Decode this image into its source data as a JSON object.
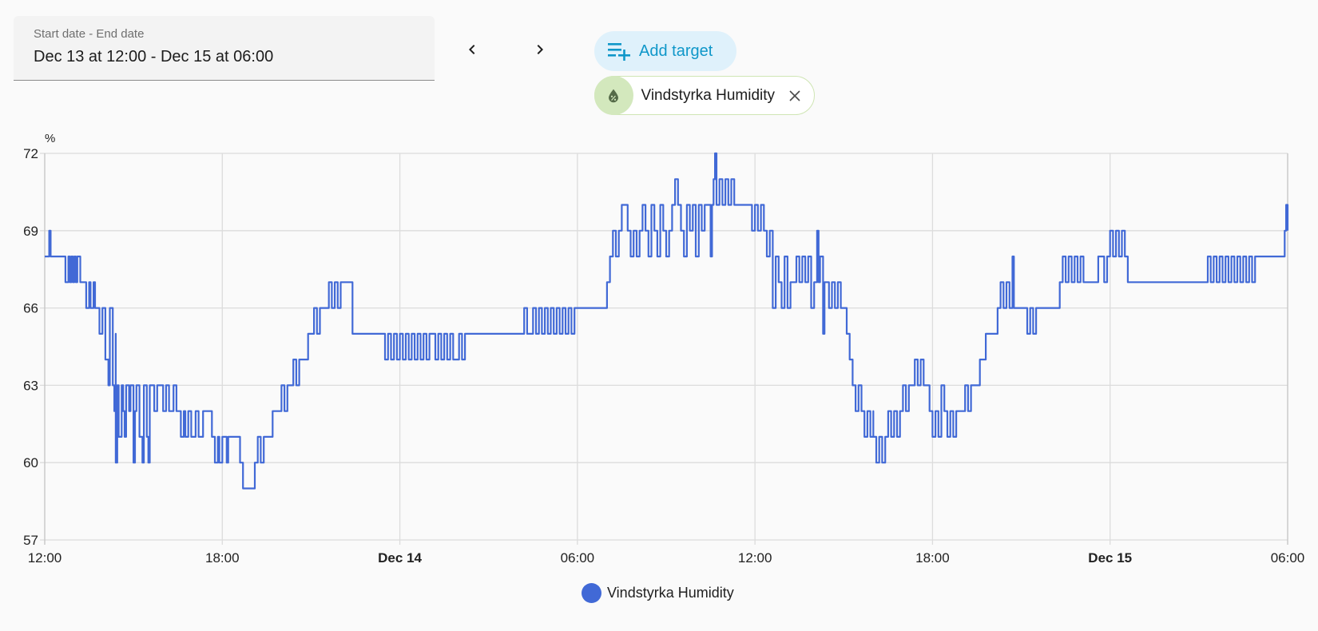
{
  "date_range": {
    "label": "Start date - End date",
    "value": "Dec 13 at 12:00 - Dec 15 at 06:00"
  },
  "navigation": {
    "prev_icon": "chevron-left-icon",
    "next_icon": "chevron-right-icon"
  },
  "add_target": {
    "label": "Add target",
    "icon": "playlist-plus-icon",
    "color": "#0f97c9"
  },
  "target_chip": {
    "label": "Vindstyrka Humidity",
    "icon": "water-percent-icon",
    "remove_icon": "close-icon"
  },
  "chart_data": {
    "type": "line",
    "step": true,
    "title": "",
    "xlabel": "",
    "ylabel": "%",
    "ylim": [
      57,
      72
    ],
    "yticks": [
      "57",
      "60",
      "63",
      "66",
      "69",
      "72"
    ],
    "xticks": [
      {
        "label": "12:00",
        "bold": false
      },
      {
        "label": "18:00",
        "bold": false
      },
      {
        "label": "Dec 14",
        "bold": true
      },
      {
        "label": "06:00",
        "bold": false
      },
      {
        "label": "12:00",
        "bold": false
      },
      {
        "label": "18:00",
        "bold": false
      },
      {
        "label": "Dec 15",
        "bold": true
      },
      {
        "label": "06:00",
        "bold": false
      }
    ],
    "x_range_hours": [
      0,
      42
    ],
    "x_unit": "hours since Dec 13 12:00",
    "grid": true,
    "legend_position": "bottom",
    "series": [
      {
        "name": "Vindstyrka Humidity",
        "color": "#4169d6",
        "points": [
          [
            0.0,
            68
          ],
          [
            0.15,
            69
          ],
          [
            0.2,
            68
          ],
          [
            0.7,
            67
          ],
          [
            0.8,
            68
          ],
          [
            0.85,
            67
          ],
          [
            0.9,
            68
          ],
          [
            0.95,
            67
          ],
          [
            1.0,
            68
          ],
          [
            1.05,
            67
          ],
          [
            1.1,
            68
          ],
          [
            1.2,
            67
          ],
          [
            1.4,
            66
          ],
          [
            1.5,
            67
          ],
          [
            1.55,
            66
          ],
          [
            1.65,
            67
          ],
          [
            1.7,
            66
          ],
          [
            1.85,
            65
          ],
          [
            1.95,
            66
          ],
          [
            2.05,
            64
          ],
          [
            2.15,
            63
          ],
          [
            2.2,
            66
          ],
          [
            2.3,
            63
          ],
          [
            2.35,
            62
          ],
          [
            2.4,
            65
          ],
          [
            2.5,
            63
          ],
          [
            2.35,
            62
          ],
          [
            2.4,
            60
          ],
          [
            2.45,
            63
          ],
          [
            2.5,
            61
          ],
          [
            2.6,
            63
          ],
          [
            2.65,
            62
          ],
          [
            2.7,
            61
          ],
          [
            2.75,
            63
          ],
          [
            2.85,
            62
          ],
          [
            2.9,
            63
          ],
          [
            3.0,
            60
          ],
          [
            3.05,
            62
          ],
          [
            3.1,
            63
          ],
          [
            3.2,
            61
          ],
          [
            3.3,
            60
          ],
          [
            3.35,
            63
          ],
          [
            3.45,
            61
          ],
          [
            3.5,
            60
          ],
          [
            3.55,
            63
          ],
          [
            3.7,
            62
          ],
          [
            3.8,
            63
          ],
          [
            4.0,
            62
          ],
          [
            4.1,
            63
          ],
          [
            4.2,
            62
          ],
          [
            4.35,
            63
          ],
          [
            4.45,
            62
          ],
          [
            4.6,
            61
          ],
          [
            4.7,
            62
          ],
          [
            4.75,
            61
          ],
          [
            4.85,
            62
          ],
          [
            4.95,
            61
          ],
          [
            5.1,
            62
          ],
          [
            5.2,
            61
          ],
          [
            5.35,
            62
          ],
          [
            5.65,
            61
          ],
          [
            5.75,
            60
          ],
          [
            5.85,
            61
          ],
          [
            5.9,
            60
          ],
          [
            6.0,
            61
          ],
          [
            6.15,
            60
          ],
          [
            6.2,
            61
          ],
          [
            6.6,
            60
          ],
          [
            6.7,
            59
          ],
          [
            7.1,
            60
          ],
          [
            7.2,
            61
          ],
          [
            7.3,
            60
          ],
          [
            7.4,
            61
          ],
          [
            7.7,
            62
          ],
          [
            7.95,
            62
          ],
          [
            8.0,
            63
          ],
          [
            8.1,
            62
          ],
          [
            8.2,
            63
          ],
          [
            8.4,
            64
          ],
          [
            8.5,
            63
          ],
          [
            8.6,
            64
          ],
          [
            8.9,
            65
          ],
          [
            9.1,
            66
          ],
          [
            9.2,
            65
          ],
          [
            9.3,
            66
          ],
          [
            9.6,
            67
          ],
          [
            9.7,
            66
          ],
          [
            9.8,
            67
          ],
          [
            9.9,
            66
          ],
          [
            10.0,
            67
          ],
          [
            10.3,
            67
          ],
          [
            10.4,
            65
          ],
          [
            11.5,
            64
          ],
          [
            11.6,
            65
          ],
          [
            11.7,
            64
          ],
          [
            11.8,
            65
          ],
          [
            11.9,
            64
          ],
          [
            12.0,
            65
          ],
          [
            12.1,
            64
          ],
          [
            12.2,
            65
          ],
          [
            12.3,
            64
          ],
          [
            12.4,
            65
          ],
          [
            12.5,
            64
          ],
          [
            12.6,
            65
          ],
          [
            12.7,
            64
          ],
          [
            12.8,
            65
          ],
          [
            12.9,
            64
          ],
          [
            13.0,
            65
          ],
          [
            13.2,
            64
          ],
          [
            13.3,
            65
          ],
          [
            13.4,
            64
          ],
          [
            13.5,
            65
          ],
          [
            13.6,
            64
          ],
          [
            13.7,
            65
          ],
          [
            13.8,
            64
          ],
          [
            14.0,
            65
          ],
          [
            14.1,
            64
          ],
          [
            14.2,
            65
          ],
          [
            16.2,
            66
          ],
          [
            16.3,
            65
          ],
          [
            16.5,
            66
          ],
          [
            16.6,
            65
          ],
          [
            16.7,
            66
          ],
          [
            16.8,
            65
          ],
          [
            16.9,
            66
          ],
          [
            17.0,
            65
          ],
          [
            17.1,
            66
          ],
          [
            17.2,
            65
          ],
          [
            17.3,
            66
          ],
          [
            17.4,
            65
          ],
          [
            17.5,
            66
          ],
          [
            17.6,
            65
          ],
          [
            17.7,
            66
          ],
          [
            17.8,
            65
          ],
          [
            17.9,
            66
          ],
          [
            19.0,
            67
          ],
          [
            19.1,
            68
          ],
          [
            19.2,
            69
          ],
          [
            19.3,
            68
          ],
          [
            19.4,
            69
          ],
          [
            19.5,
            70
          ],
          [
            19.7,
            69
          ],
          [
            19.8,
            68
          ],
          [
            19.9,
            69
          ],
          [
            20.0,
            68
          ],
          [
            20.1,
            69
          ],
          [
            20.2,
            70
          ],
          [
            20.3,
            69
          ],
          [
            20.4,
            68
          ],
          [
            20.5,
            70
          ],
          [
            20.6,
            69
          ],
          [
            20.7,
            68
          ],
          [
            20.8,
            70
          ],
          [
            20.9,
            69
          ],
          [
            21.0,
            68
          ],
          [
            21.1,
            69
          ],
          [
            21.2,
            70
          ],
          [
            21.3,
            71
          ],
          [
            21.4,
            70
          ],
          [
            21.5,
            69
          ],
          [
            21.6,
            68
          ],
          [
            21.7,
            70
          ],
          [
            21.8,
            69
          ],
          [
            21.9,
            70
          ],
          [
            22.0,
            68
          ],
          [
            22.1,
            70
          ],
          [
            22.2,
            69
          ],
          [
            22.3,
            70
          ],
          [
            22.5,
            68
          ],
          [
            22.55,
            70
          ],
          [
            22.6,
            71
          ],
          [
            22.65,
            72
          ],
          [
            22.7,
            70
          ],
          [
            22.8,
            71
          ],
          [
            22.9,
            70
          ],
          [
            23.0,
            71
          ],
          [
            23.1,
            70
          ],
          [
            23.2,
            71
          ],
          [
            23.3,
            70
          ],
          [
            23.9,
            69
          ],
          [
            24.0,
            70
          ],
          [
            24.1,
            69
          ],
          [
            24.2,
            70
          ],
          [
            24.3,
            69
          ],
          [
            24.4,
            68
          ],
          [
            24.5,
            69
          ],
          [
            24.6,
            66
          ],
          [
            24.7,
            68
          ],
          [
            24.8,
            67
          ],
          [
            24.9,
            66
          ],
          [
            25.0,
            68
          ],
          [
            25.1,
            66
          ],
          [
            25.2,
            67
          ],
          [
            25.4,
            68
          ],
          [
            25.5,
            67
          ],
          [
            25.6,
            68
          ],
          [
            25.7,
            67
          ],
          [
            25.8,
            68
          ],
          [
            25.9,
            66
          ],
          [
            26.0,
            67
          ],
          [
            26.1,
            69
          ],
          [
            26.15,
            67
          ],
          [
            26.2,
            68
          ],
          [
            26.3,
            65
          ],
          [
            26.35,
            67
          ],
          [
            26.5,
            66
          ],
          [
            26.6,
            67
          ],
          [
            26.7,
            66
          ],
          [
            26.8,
            67
          ],
          [
            26.9,
            66
          ],
          [
            27.1,
            65
          ],
          [
            27.2,
            64
          ],
          [
            27.3,
            63
          ],
          [
            27.4,
            62
          ],
          [
            27.5,
            63
          ],
          [
            27.6,
            62
          ],
          [
            27.7,
            61
          ],
          [
            27.8,
            62
          ],
          [
            27.9,
            61
          ],
          [
            28.0,
            62
          ],
          [
            28.0,
            61
          ],
          [
            28.1,
            60
          ],
          [
            28.2,
            61
          ],
          [
            28.3,
            60
          ],
          [
            28.4,
            61
          ],
          [
            28.5,
            62
          ],
          [
            28.6,
            61
          ],
          [
            28.7,
            62
          ],
          [
            28.8,
            61
          ],
          [
            28.9,
            62
          ],
          [
            29.0,
            63
          ],
          [
            29.1,
            62
          ],
          [
            29.2,
            63
          ],
          [
            29.4,
            64
          ],
          [
            29.5,
            63
          ],
          [
            29.6,
            64
          ],
          [
            29.7,
            63
          ],
          [
            29.9,
            62
          ],
          [
            30.0,
            61
          ],
          [
            30.1,
            62
          ],
          [
            30.2,
            61
          ],
          [
            30.3,
            63
          ],
          [
            30.4,
            62
          ],
          [
            30.5,
            61
          ],
          [
            30.6,
            62
          ],
          [
            30.7,
            61
          ],
          [
            30.8,
            62
          ],
          [
            31.0,
            62
          ],
          [
            31.1,
            63
          ],
          [
            31.2,
            62
          ],
          [
            31.3,
            63
          ],
          [
            31.6,
            64
          ],
          [
            31.8,
            65
          ],
          [
            32.0,
            65
          ],
          [
            32.2,
            66
          ],
          [
            32.3,
            67
          ],
          [
            32.4,
            66
          ],
          [
            32.5,
            67
          ],
          [
            32.6,
            66
          ],
          [
            32.7,
            68
          ],
          [
            32.75,
            66
          ],
          [
            33.0,
            66
          ],
          [
            33.2,
            65
          ],
          [
            33.3,
            66
          ],
          [
            33.4,
            65
          ],
          [
            33.5,
            66
          ],
          [
            34.3,
            67
          ],
          [
            34.4,
            68
          ],
          [
            34.5,
            67
          ],
          [
            34.6,
            68
          ],
          [
            34.7,
            67
          ],
          [
            34.8,
            68
          ],
          [
            34.9,
            67
          ],
          [
            35.0,
            68
          ],
          [
            35.1,
            67
          ],
          [
            35.5,
            67
          ],
          [
            35.6,
            68
          ],
          [
            35.8,
            67
          ],
          [
            35.9,
            68
          ],
          [
            36.0,
            69
          ],
          [
            36.1,
            68
          ],
          [
            36.2,
            69
          ],
          [
            36.3,
            68
          ],
          [
            36.4,
            69
          ],
          [
            36.5,
            68
          ],
          [
            36.6,
            67
          ],
          [
            39.3,
            68
          ],
          [
            39.4,
            67
          ],
          [
            39.5,
            68
          ],
          [
            39.6,
            67
          ],
          [
            39.7,
            68
          ],
          [
            39.8,
            67
          ],
          [
            39.9,
            68
          ],
          [
            40.0,
            67
          ],
          [
            40.1,
            68
          ],
          [
            40.2,
            67
          ],
          [
            40.3,
            68
          ],
          [
            40.4,
            67
          ],
          [
            40.5,
            68
          ],
          [
            40.6,
            67
          ],
          [
            40.7,
            68
          ],
          [
            40.8,
            67
          ],
          [
            40.9,
            68
          ],
          [
            41.9,
            69
          ],
          [
            41.95,
            70
          ],
          [
            42.0,
            69
          ]
        ]
      }
    ]
  }
}
